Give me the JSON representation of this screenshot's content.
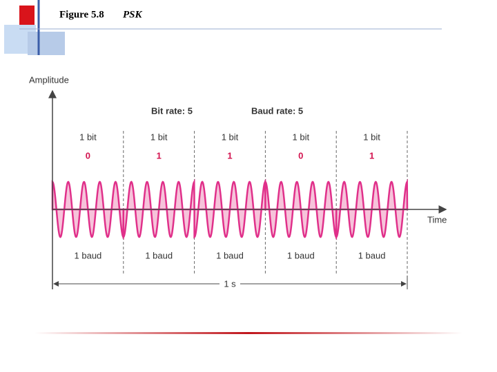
{
  "header": {
    "figure": "Figure 5.8",
    "title": "PSK"
  },
  "diagram": {
    "y_axis_label": "Amplitude",
    "x_axis_label": "Time",
    "bit_rate": "Bit rate: 5",
    "baud_rate": "Baud rate: 5",
    "bits": [
      {
        "label": "1 bit",
        "value": "0",
        "baud": "1 baud"
      },
      {
        "label": "1 bit",
        "value": "1",
        "baud": "1 baud"
      },
      {
        "label": "1 bit",
        "value": "1",
        "baud": "1 baud"
      },
      {
        "label": "1 bit",
        "value": "0",
        "baud": "1 baud"
      },
      {
        "label": "1 bit",
        "value": "1",
        "baud": "1 baud"
      }
    ],
    "duration": "1 s"
  }
}
